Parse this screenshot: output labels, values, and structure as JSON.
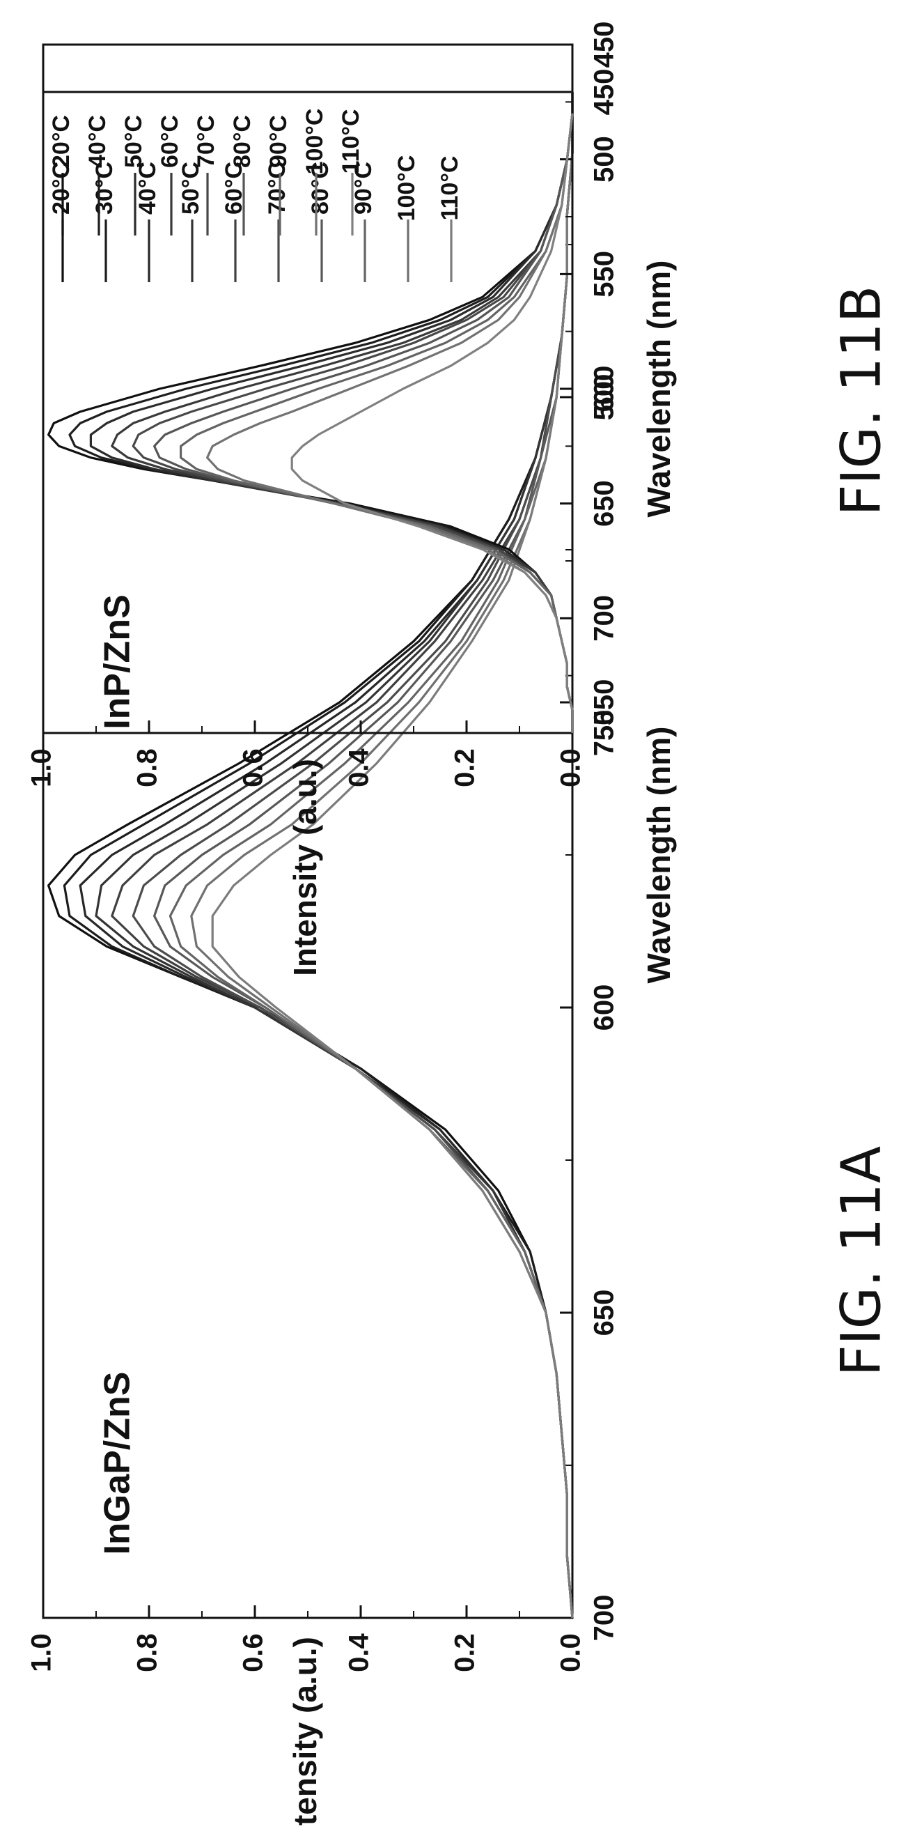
{
  "chart_data": [
    {
      "id": "fig-11a",
      "type": "line",
      "caption": "FIG. 11A",
      "annotation": "InGaP/ZnS",
      "xlabel": "Wavelength (nm)",
      "ylabel": "Intensity (a.u.)",
      "xlim": [
        450,
        700
      ],
      "ylim": [
        0.0,
        1.0
      ],
      "x_ticks": [
        "450",
        "500",
        "550",
        "600",
        "650",
        "700"
      ],
      "y_ticks": [
        "0.0",
        "0.2",
        "0.4",
        "0.6",
        "0.8",
        "1.0"
      ],
      "grid": false,
      "legend_position": "top-right",
      "x": [
        450,
        460,
        470,
        480,
        490,
        500,
        510,
        520,
        530,
        540,
        550,
        560,
        570,
        575,
        580,
        585,
        590,
        595,
        600,
        610,
        620,
        630,
        640,
        650,
        660,
        670,
        680,
        690,
        700
      ],
      "series": [
        {
          "name": "20°C",
          "color": "#101010",
          "values": [
            0.0,
            0.0,
            0.01,
            0.01,
            0.02,
            0.04,
            0.07,
            0.12,
            0.19,
            0.3,
            0.44,
            0.63,
            0.84,
            0.94,
            0.99,
            0.97,
            0.88,
            0.74,
            0.59,
            0.4,
            0.24,
            0.14,
            0.08,
            0.05,
            0.03,
            0.02,
            0.01,
            0.01,
            0.0
          ]
        },
        {
          "name": "30°C",
          "color": "#1c1c1c",
          "values": [
            0.0,
            0.0,
            0.01,
            0.01,
            0.02,
            0.04,
            0.07,
            0.12,
            0.19,
            0.29,
            0.43,
            0.61,
            0.81,
            0.91,
            0.96,
            0.95,
            0.87,
            0.74,
            0.6,
            0.4,
            0.25,
            0.15,
            0.08,
            0.05,
            0.03,
            0.02,
            0.01,
            0.01,
            0.0
          ]
        },
        {
          "name": "40°C",
          "color": "#282828",
          "values": [
            0.0,
            0.0,
            0.01,
            0.01,
            0.02,
            0.04,
            0.07,
            0.11,
            0.18,
            0.28,
            0.41,
            0.58,
            0.77,
            0.87,
            0.93,
            0.92,
            0.85,
            0.73,
            0.6,
            0.41,
            0.25,
            0.15,
            0.09,
            0.05,
            0.03,
            0.02,
            0.01,
            0.01,
            0.0
          ]
        },
        {
          "name": "50°C",
          "color": "#343434",
          "values": [
            0.0,
            0.0,
            0.01,
            0.01,
            0.02,
            0.04,
            0.07,
            0.11,
            0.18,
            0.27,
            0.39,
            0.55,
            0.73,
            0.83,
            0.89,
            0.9,
            0.83,
            0.72,
            0.6,
            0.41,
            0.26,
            0.15,
            0.09,
            0.05,
            0.03,
            0.02,
            0.01,
            0.01,
            0.0
          ]
        },
        {
          "name": "60°C",
          "color": "#404040",
          "values": [
            0.0,
            0.0,
            0.01,
            0.01,
            0.02,
            0.04,
            0.06,
            0.1,
            0.17,
            0.26,
            0.37,
            0.52,
            0.69,
            0.79,
            0.85,
            0.87,
            0.81,
            0.71,
            0.59,
            0.41,
            0.26,
            0.16,
            0.09,
            0.05,
            0.03,
            0.02,
            0.01,
            0.01,
            0.0
          ]
        },
        {
          "name": "70°C",
          "color": "#4c4c4c",
          "values": [
            0.0,
            0.0,
            0.01,
            0.01,
            0.02,
            0.04,
            0.06,
            0.1,
            0.16,
            0.24,
            0.35,
            0.49,
            0.65,
            0.74,
            0.81,
            0.83,
            0.79,
            0.7,
            0.59,
            0.41,
            0.26,
            0.16,
            0.09,
            0.05,
            0.03,
            0.02,
            0.01,
            0.01,
            0.0
          ]
        },
        {
          "name": "80°C",
          "color": "#585858",
          "values": [
            0.0,
            0.0,
            0.01,
            0.01,
            0.02,
            0.03,
            0.06,
            0.09,
            0.15,
            0.23,
            0.33,
            0.46,
            0.61,
            0.7,
            0.77,
            0.79,
            0.76,
            0.68,
            0.58,
            0.41,
            0.27,
            0.16,
            0.09,
            0.05,
            0.03,
            0.02,
            0.01,
            0.01,
            0.0
          ]
        },
        {
          "name": "90°C",
          "color": "#646464",
          "values": [
            0.0,
            0.0,
            0.01,
            0.01,
            0.02,
            0.03,
            0.05,
            0.09,
            0.14,
            0.21,
            0.31,
            0.43,
            0.57,
            0.66,
            0.73,
            0.76,
            0.74,
            0.67,
            0.58,
            0.41,
            0.27,
            0.16,
            0.09,
            0.05,
            0.03,
            0.02,
            0.01,
            0.01,
            0.0
          ]
        },
        {
          "name": "100°C",
          "color": "#707070",
          "values": [
            0.0,
            0.0,
            0.01,
            0.01,
            0.02,
            0.03,
            0.05,
            0.08,
            0.13,
            0.2,
            0.29,
            0.4,
            0.53,
            0.62,
            0.69,
            0.72,
            0.71,
            0.65,
            0.57,
            0.41,
            0.27,
            0.17,
            0.1,
            0.05,
            0.03,
            0.02,
            0.01,
            0.01,
            0.0
          ]
        },
        {
          "name": "110°C",
          "color": "#7c7c7c",
          "values": [
            0.0,
            0.0,
            0.01,
            0.01,
            0.02,
            0.03,
            0.05,
            0.08,
            0.12,
            0.19,
            0.27,
            0.37,
            0.49,
            0.57,
            0.64,
            0.68,
            0.68,
            0.63,
            0.56,
            0.41,
            0.27,
            0.17,
            0.1,
            0.05,
            0.03,
            0.02,
            0.01,
            0.01,
            0.0
          ]
        }
      ]
    },
    {
      "id": "fig-11b",
      "type": "line",
      "caption": "FIG. 11B",
      "annotation": "InP/ZnS",
      "xlabel": "Wavelength (nm)",
      "ylabel": "Intensity (a.u.)",
      "xlim": [
        450,
        750
      ],
      "ylim": [
        0.0,
        1.0
      ],
      "x_ticks": [
        "450",
        "500",
        "550",
        "600",
        "650",
        "700",
        "750"
      ],
      "y_ticks": [
        "0.0",
        "0.2",
        "0.4",
        "0.6",
        "0.8",
        "1.0"
      ],
      "grid": false,
      "legend_position": "top-right",
      "x": [
        480,
        500,
        520,
        540,
        560,
        570,
        580,
        590,
        600,
        610,
        615,
        620,
        625,
        630,
        635,
        640,
        650,
        660,
        670,
        680,
        690,
        700,
        710,
        720,
        730,
        740,
        750
      ],
      "series": [
        {
          "name": "20°C",
          "color": "#101010",
          "values": [
            0.0,
            0.01,
            0.03,
            0.07,
            0.17,
            0.27,
            0.41,
            0.59,
            0.78,
            0.93,
            0.98,
            0.99,
            0.97,
            0.91,
            0.81,
            0.68,
            0.42,
            0.23,
            0.12,
            0.07,
            0.04,
            0.03,
            0.02,
            0.01,
            0.01,
            0.0,
            0.0
          ]
        },
        {
          "name": "40°C",
          "color": "#1e1e1e",
          "values": [
            0.0,
            0.01,
            0.03,
            0.07,
            0.16,
            0.25,
            0.38,
            0.55,
            0.73,
            0.88,
            0.93,
            0.95,
            0.94,
            0.89,
            0.8,
            0.68,
            0.43,
            0.24,
            0.13,
            0.07,
            0.04,
            0.03,
            0.02,
            0.01,
            0.01,
            0.0,
            0.0
          ]
        },
        {
          "name": "50°C",
          "color": "#2c2c2c",
          "values": [
            0.0,
            0.01,
            0.03,
            0.07,
            0.15,
            0.23,
            0.35,
            0.51,
            0.68,
            0.83,
            0.88,
            0.91,
            0.91,
            0.87,
            0.79,
            0.68,
            0.44,
            0.25,
            0.13,
            0.07,
            0.04,
            0.03,
            0.02,
            0.01,
            0.01,
            0.0,
            0.0
          ]
        },
        {
          "name": "60°C",
          "color": "#3a3a3a",
          "values": [
            0.0,
            0.01,
            0.03,
            0.06,
            0.14,
            0.21,
            0.32,
            0.47,
            0.63,
            0.77,
            0.83,
            0.86,
            0.87,
            0.84,
            0.77,
            0.67,
            0.44,
            0.25,
            0.14,
            0.07,
            0.04,
            0.03,
            0.02,
            0.01,
            0.01,
            0.0,
            0.0
          ]
        },
        {
          "name": "70°C",
          "color": "#484848",
          "values": [
            0.0,
            0.01,
            0.03,
            0.06,
            0.13,
            0.2,
            0.3,
            0.43,
            0.58,
            0.72,
            0.78,
            0.82,
            0.83,
            0.81,
            0.75,
            0.66,
            0.44,
            0.26,
            0.14,
            0.08,
            0.04,
            0.03,
            0.02,
            0.01,
            0.01,
            0.0,
            0.0
          ]
        },
        {
          "name": "80°C",
          "color": "#565656",
          "values": [
            0.0,
            0.01,
            0.03,
            0.06,
            0.12,
            0.18,
            0.27,
            0.39,
            0.53,
            0.66,
            0.72,
            0.77,
            0.79,
            0.78,
            0.73,
            0.65,
            0.45,
            0.27,
            0.15,
            0.08,
            0.04,
            0.03,
            0.02,
            0.01,
            0.01,
            0.0,
            0.0
          ]
        },
        {
          "name": "90°C",
          "color": "#646464",
          "values": [
            0.0,
            0.01,
            0.02,
            0.05,
            0.11,
            0.16,
            0.24,
            0.35,
            0.48,
            0.6,
            0.66,
            0.71,
            0.74,
            0.74,
            0.71,
            0.64,
            0.45,
            0.27,
            0.15,
            0.08,
            0.04,
            0.03,
            0.02,
            0.01,
            0.01,
            0.0,
            0.0
          ]
        },
        {
          "name": "100°C",
          "color": "#727272",
          "values": [
            0.0,
            0.01,
            0.02,
            0.05,
            0.1,
            0.14,
            0.21,
            0.31,
            0.42,
            0.53,
            0.59,
            0.64,
            0.68,
            0.69,
            0.67,
            0.62,
            0.45,
            0.28,
            0.16,
            0.09,
            0.05,
            0.03,
            0.02,
            0.01,
            0.01,
            0.0,
            0.0
          ]
        },
        {
          "name": "110°C",
          "color": "#808080",
          "values": [
            0.0,
            0.01,
            0.02,
            0.04,
            0.08,
            0.11,
            0.16,
            0.23,
            0.32,
            0.4,
            0.44,
            0.48,
            0.51,
            0.53,
            0.53,
            0.51,
            0.43,
            0.29,
            0.17,
            0.09,
            0.05,
            0.03,
            0.02,
            0.01,
            0.01,
            0.0,
            0.0
          ]
        }
      ]
    }
  ]
}
